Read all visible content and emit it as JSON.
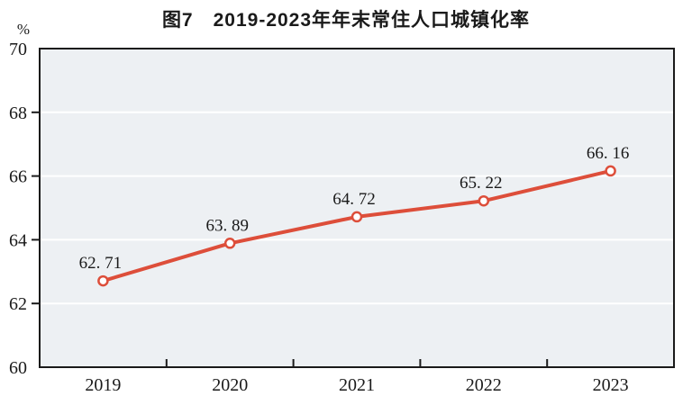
{
  "page": {
    "title": "图7　2019-2023年年末常住人口城镇化率"
  },
  "chart_data": {
    "type": "line",
    "title": "图7　2019-2023年年末常住人口城镇化率",
    "categories": [
      "2019",
      "2020",
      "2021",
      "2022",
      "2023"
    ],
    "series": [
      {
        "name": "年末常住人口城镇化率",
        "values": [
          62.71,
          63.89,
          64.72,
          65.22,
          66.16
        ],
        "point_labels": [
          "62. 71",
          "63. 89",
          "64. 72",
          "65. 22",
          "66. 16"
        ]
      }
    ],
    "xlabel": "",
    "ylabel": "%",
    "ylim": [
      60,
      70
    ],
    "ytick_step": 2,
    "ytick_labels": [
      "60",
      "62",
      "64",
      "66",
      "68",
      "70"
    ],
    "grid": true,
    "legend": "none",
    "colors": {
      "line": "#dd4e3a",
      "marker_fill": "#ffffff",
      "plot_bg": "#edf0f3",
      "gridline": "#ffffff",
      "axis": "#1a1a1a",
      "text": "#1a1a1a"
    }
  }
}
